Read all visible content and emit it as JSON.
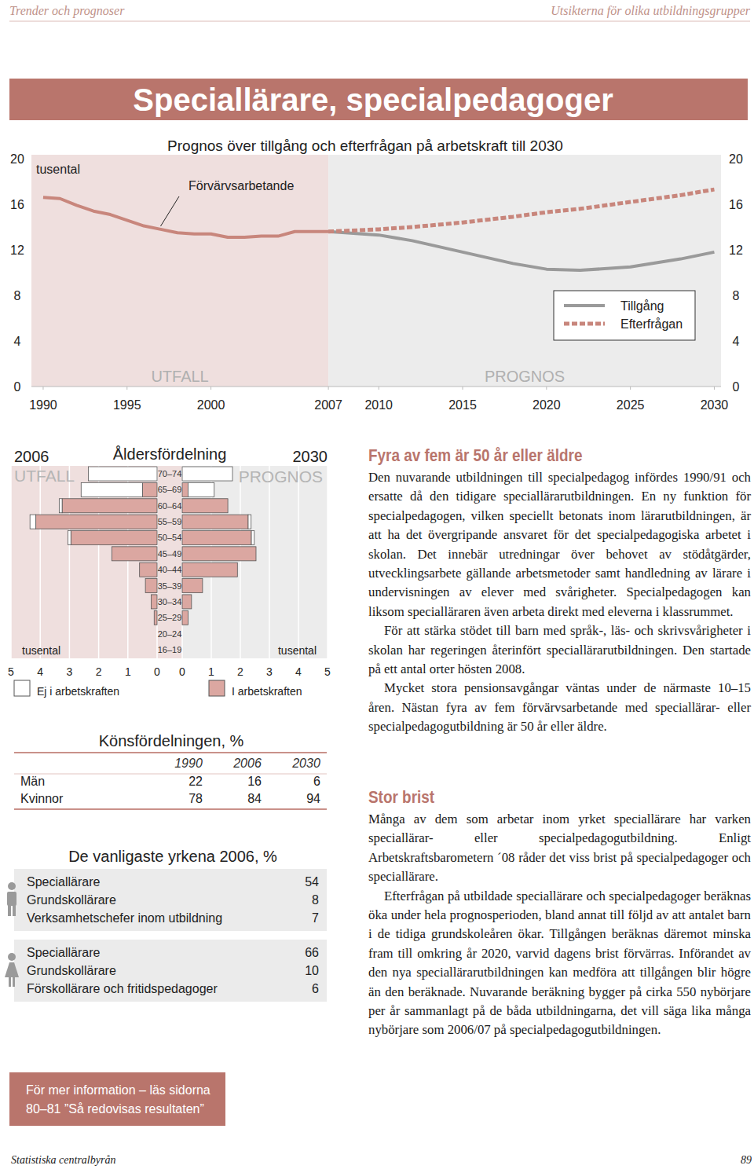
{
  "header": {
    "left": "Trender och prognoser",
    "right": "Utsikterna för olika utbildningsgrupper"
  },
  "title": "Speciallärare, specialpedagoger",
  "chart_data": [
    {
      "type": "line",
      "title": "Prognos över tillgång och efterfrågan på arbetskraft till 2030",
      "ylabel": "tusental",
      "x": [
        1990,
        1991,
        1992,
        1993,
        1994,
        1995,
        1996,
        1997,
        1998,
        1999,
        2000,
        2001,
        2002,
        2003,
        2004,
        2005,
        2006,
        2007,
        2010,
        2012,
        2015,
        2018,
        2020,
        2022,
        2025,
        2028,
        2030
      ],
      "series": [
        {
          "name": "Förvärvsarbetande",
          "color": "#c8867c",
          "line_style": "solid",
          "values": [
            16.6,
            16.5,
            15.9,
            15.4,
            15.1,
            14.6,
            14.1,
            13.8,
            13.5,
            13.4,
            13.4,
            13.1,
            13.1,
            13.2,
            13.2,
            13.6,
            13.6,
            13.6,
            null,
            null,
            null,
            null,
            null,
            null,
            null,
            null,
            null
          ]
        },
        {
          "name": "Tillgång",
          "color": "#9a9a9a",
          "line_style": "solid",
          "values": [
            null,
            null,
            null,
            null,
            null,
            null,
            null,
            null,
            null,
            null,
            null,
            null,
            null,
            null,
            null,
            null,
            null,
            13.6,
            13.3,
            12.8,
            11.8,
            10.8,
            10.3,
            10.2,
            10.5,
            11.2,
            11.8
          ]
        },
        {
          "name": "Efterfrågan",
          "color": "#c8867c",
          "line_style": "dashed",
          "values": [
            null,
            null,
            null,
            null,
            null,
            null,
            null,
            null,
            null,
            null,
            null,
            null,
            null,
            null,
            null,
            null,
            null,
            13.6,
            13.8,
            14.0,
            14.4,
            14.9,
            15.3,
            15.6,
            16.2,
            16.8,
            17.3
          ]
        }
      ],
      "regions": [
        {
          "label": "UTFALL",
          "to": 2007
        },
        {
          "label": "PROGNOS",
          "from": 2007
        }
      ],
      "xlim": [
        1989.3,
        2030.4
      ],
      "xticks": [
        1990,
        1995,
        2000,
        2007,
        2010,
        2015,
        2020,
        2025,
        2030
      ],
      "ylim": [
        0,
        20
      ],
      "yticks": [
        0,
        4,
        8,
        12,
        16,
        20
      ],
      "y2lim": [
        0,
        20
      ],
      "y2ticks": [
        0,
        4,
        8,
        12,
        16,
        20
      ],
      "grid": false,
      "legend": "lower right"
    },
    {
      "type": "bar",
      "orientation": "horizontal",
      "stacked": true,
      "title": "Åldersfördelning",
      "xlabel": "tusental",
      "categories": [
        "16–19",
        "20–24",
        "25–29",
        "30–34",
        "35–39",
        "40–44",
        "45–49",
        "50–54",
        "55–59",
        "60–64",
        "65–69",
        "70–74"
      ],
      "series": [
        {
          "name": "Ej i arbetskraften",
          "color": "#ffffff"
        },
        {
          "name": "I arbetskraften",
          "color": "#dba7a1"
        }
      ],
      "panels": [
        {
          "year": "2006",
          "label": "UTFALL",
          "values": [
            [
              0,
              0,
              0,
              0,
              0,
              0,
              0,
              0.1,
              0.2,
              0.1,
              2.1,
              2.35
            ],
            [
              0,
              0,
              0.1,
              0.2,
              0.4,
              0.6,
              1.55,
              2.95,
              4.15,
              3.25,
              0.5,
              0
            ]
          ]
        },
        {
          "year": "2030",
          "label": "PROGNOS",
          "values": [
            [
              0,
              0,
              0,
              0,
              0,
              0,
              0,
              0.1,
              0.1,
              0,
              0.9,
              1.73
            ],
            [
              0,
              0,
              0.2,
              0.32,
              0.7,
              1.9,
              2.54,
              2.38,
              2.27,
              1.57,
              0.2,
              0
            ]
          ]
        }
      ],
      "xlim": [
        0,
        5
      ],
      "xticks": [
        0,
        1,
        2,
        3,
        4,
        5
      ],
      "legend": "bottom"
    }
  ],
  "gender_table": {
    "title": "Könsfördelningen, %",
    "columns": [
      "1990",
      "2006",
      "2030"
    ],
    "rows": [
      {
        "label": "Män",
        "values": [
          22,
          16,
          6
        ]
      },
      {
        "label": "Kvinnor",
        "values": [
          78,
          84,
          94
        ]
      }
    ]
  },
  "occupations": {
    "title": "De vanligaste yrkena 2006, %",
    "groups": [
      {
        "rows": [
          {
            "label": "Speciallärare",
            "value": 54
          },
          {
            "label": "Grundskollärare",
            "value": 8
          },
          {
            "label": "Verksamhetschefer inom utbildning",
            "value": 7
          }
        ]
      },
      {
        "rows": [
          {
            "label": "Speciallärare",
            "value": 66
          },
          {
            "label": "Grundskollärare",
            "value": 10
          },
          {
            "label": "Förskollärare och fritidspedagoger",
            "value": 6
          }
        ]
      }
    ]
  },
  "text": {
    "sections": [
      {
        "heading": "Fyra av fem är 50 år eller äldre",
        "paragraphs": [
          "Den nuvarande utbildningen till specialpedagog infördes 1990/91 och ersatte då den tidigare speciallärarutbildningen. En ny funktion för specialpedagogen, vilken speciellt betonats inom lärarutbildningen, är att ha det övergripande ansvaret för det specialpedagogiska arbetet i skolan. Det innebär utredningar över behovet av stödåtgärder, utvecklingsarbete gällande arbetsmetoder samt handledning av lärare i undervisningen av elever med svårigheter. Specialpedagogen kan liksom specialläraren även arbeta direkt med eleverna i klassrummet.",
          "För att stärka stödet till barn med språk-, läs- och skrivsvårigheter i skolan har regeringen återinfört speciallärarutbildningen. Den startade på ett antal orter hösten 2008.",
          "Mycket stora pensionsavgångar väntas under de närmaste 10–15 åren. Nästan fyra av fem förvärvsarbetande med speciallärar- eller specialpedagogutbildning är 50 år eller äldre."
        ]
      },
      {
        "heading": "Stor brist",
        "paragraphs": [
          "Många av dem som arbetar inom yrket speciallärare har varken speciallärar- eller specialpedagogutbildning. Enligt Arbetskraftsbarometern ´08 råder det viss brist på specialpedagoger och speciallärare.",
          "Efterfrågan på utbildade speciallärare och specialpedagoger beräknas öka under hela prognosperioden, bland annat till följd av att antalet barn i de tidiga grundskoleåren ökar. Tillgången beräknas däremot minska fram till omkring år 2020, varvid dagens brist förvärras. Införandet av den nya speciallärarutbildningen kan medföra att tillgången blir högre än den beräknade. Nuvarande beräkning bygger på cirka 550 nybörjare per år sammanlagt på de båda utbildningarna, det vill säga lika många nybörjare som 2006/07 på specialpedagogutbildningen."
        ]
      }
    ]
  },
  "info_box": {
    "lines": [
      "För mer information – läs sidorna",
      "80–81 ”Så redovisas resultaten”"
    ]
  },
  "footer": {
    "left": "Statistiska centralbyrån",
    "right": "89"
  }
}
